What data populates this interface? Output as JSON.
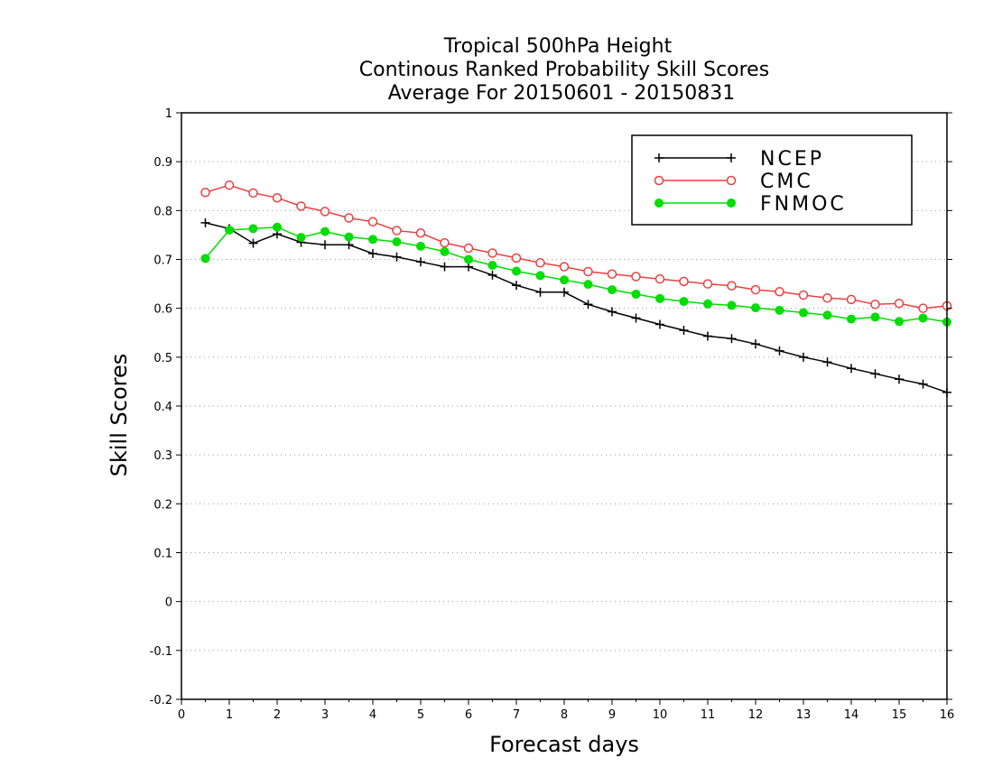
{
  "chart_data": {
    "type": "line",
    "title_lines": [
      "Tropical 500hPa Height",
      "Continous Ranked Probability Skill Scores",
      "Average For 20150601 - 20150831"
    ],
    "xlabel": "Forecast days",
    "ylabel": "Skill Scores",
    "xlim": [
      0,
      16
    ],
    "ylim": [
      -0.2,
      1
    ],
    "x_ticks": [
      0,
      1,
      2,
      3,
      4,
      5,
      6,
      7,
      8,
      9,
      10,
      11,
      12,
      13,
      14,
      15,
      16
    ],
    "x_tick_labels": [
      "0",
      "1",
      "2",
      "3",
      "4",
      "5",
      "6",
      "7",
      "8",
      "9",
      "10",
      "11",
      "12",
      "13",
      "14",
      "15",
      "16"
    ],
    "y_ticks": [
      -0.2,
      -0.1,
      0,
      0.1,
      0.2,
      0.3,
      0.4,
      0.5,
      0.6,
      0.7,
      0.8,
      0.9,
      1
    ],
    "y_tick_labels": [
      "-0.2",
      "-0.1",
      "0",
      "0.1",
      "0.2",
      "0.3",
      "0.4",
      "0.5",
      "0.6",
      "0.7",
      "0.8",
      "0.9",
      "1"
    ],
    "grid": "horizontal dotted",
    "legend_position": "top-right",
    "x": [
      0.5,
      1,
      1.5,
      2,
      2.5,
      3,
      3.5,
      4,
      4.5,
      5,
      5.5,
      6,
      6.5,
      7,
      7.5,
      8,
      8.5,
      9,
      9.5,
      10,
      10.5,
      11,
      11.5,
      12,
      12.5,
      13,
      13.5,
      14,
      14.5,
      15,
      15.5,
      16
    ],
    "series": [
      {
        "name": "NCEP",
        "color": "#000000",
        "marker": "plus",
        "values": [
          0.775,
          0.763,
          0.733,
          0.752,
          0.735,
          0.73,
          0.73,
          0.712,
          0.705,
          0.695,
          0.685,
          0.685,
          0.668,
          0.647,
          0.633,
          0.633,
          0.608,
          0.593,
          0.58,
          0.567,
          0.555,
          0.543,
          0.538,
          0.527,
          0.513,
          0.5,
          0.49,
          0.477,
          0.466,
          0.455,
          0.445,
          0.428
        ]
      },
      {
        "name": "CMC",
        "color": "#e8403f",
        "marker": "open-circle",
        "values": [
          0.837,
          0.852,
          0.836,
          0.826,
          0.809,
          0.798,
          0.785,
          0.777,
          0.759,
          0.754,
          0.734,
          0.723,
          0.713,
          0.703,
          0.693,
          0.685,
          0.675,
          0.67,
          0.665,
          0.66,
          0.655,
          0.65,
          0.646,
          0.638,
          0.634,
          0.627,
          0.621,
          0.618,
          0.608,
          0.61,
          0.6,
          0.605
        ]
      },
      {
        "name": "FNMOC",
        "color": "#00dd00",
        "marker": "filled-circle",
        "values": [
          0.702,
          0.76,
          0.763,
          0.766,
          0.745,
          0.757,
          0.746,
          0.741,
          0.736,
          0.727,
          0.716,
          0.7,
          0.688,
          0.676,
          0.667,
          0.658,
          0.649,
          0.638,
          0.629,
          0.62,
          0.614,
          0.609,
          0.606,
          0.601,
          0.596,
          0.591,
          0.586,
          0.578,
          0.582,
          0.573,
          0.58,
          0.572
        ]
      }
    ]
  }
}
